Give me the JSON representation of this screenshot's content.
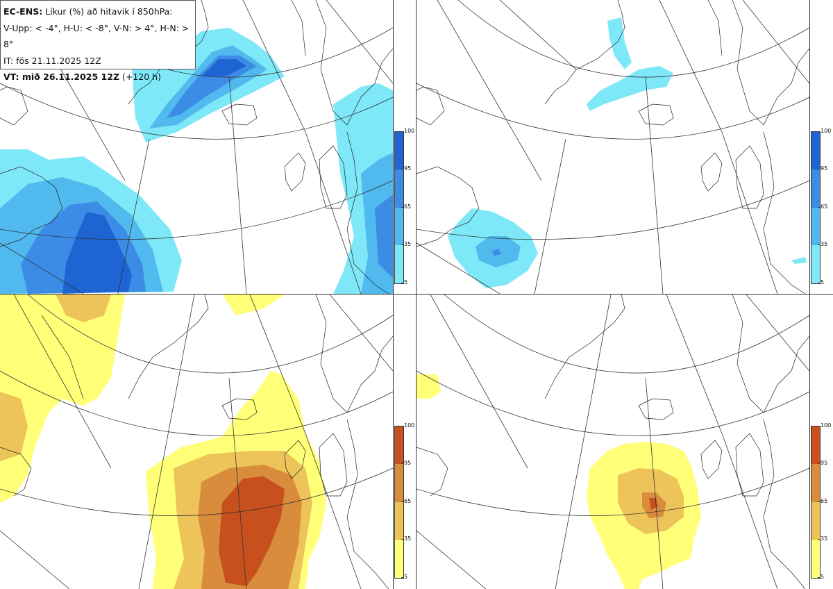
{
  "info": {
    "model_label": "EC-ENS:",
    "title_rest": "Líkur (%) að hitavik í 850hPa:",
    "thresholds": "V-Upp: < -4°, H-U: < -8°, V-N: > 4°, H-N: > 8°",
    "initial_time": "IT: fös 21.11.2025 12Z",
    "valid_label": "VT: mið 26.11.2025 12Z",
    "lead_time": "(+120 h)"
  },
  "colorbars": {
    "cold": {
      "ticks": [
        "100",
        "95",
        "65",
        "35",
        "5"
      ],
      "colors": [
        "#1e64d2",
        "#3c8ce6",
        "#50b9ee",
        "#7ee8f8"
      ]
    },
    "warm": {
      "ticks": [
        "100",
        "95",
        "65",
        "35",
        "5"
      ],
      "colors": [
        "#c8501e",
        "#d98c3c",
        "#ecc45a",
        "#ffff78"
      ]
    }
  },
  "panels": [
    {
      "id": "top-left",
      "label": "V-Upp",
      "scheme": "cold"
    },
    {
      "id": "top-right",
      "label": "H-U",
      "scheme": "cold"
    },
    {
      "id": "bottom-left",
      "label": "V-N",
      "scheme": "warm"
    },
    {
      "id": "bottom-right",
      "label": "H-N",
      "scheme": "warm"
    }
  ]
}
